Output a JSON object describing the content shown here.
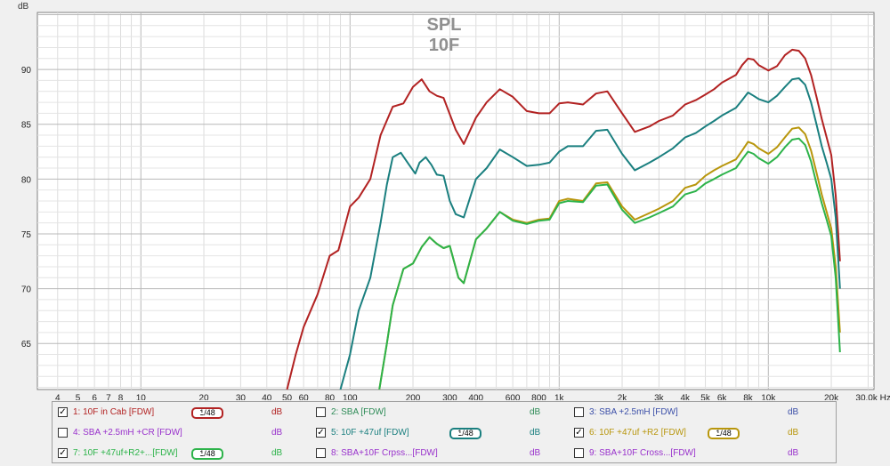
{
  "chart_data": {
    "type": "line",
    "title": "SPL",
    "subtitle": "10F",
    "ylabel": "dB",
    "xunit": "Hz",
    "xscale": "log",
    "xlim": [
      3.2,
      32000
    ],
    "ylim": [
      60.8,
      95.2
    ],
    "grid": true,
    "x_ticks": [
      {
        "value": 4,
        "label": "4"
      },
      {
        "value": 5,
        "label": "5"
      },
      {
        "value": 6,
        "label": "6"
      },
      {
        "value": 7,
        "label": "7"
      },
      {
        "value": 8,
        "label": "8"
      },
      {
        "value": 10,
        "label": "10"
      },
      {
        "value": 20,
        "label": "20"
      },
      {
        "value": 30,
        "label": "30"
      },
      {
        "value": 40,
        "label": "40"
      },
      {
        "value": 50,
        "label": "50"
      },
      {
        "value": 60,
        "label": "60"
      },
      {
        "value": 80,
        "label": "80"
      },
      {
        "value": 100,
        "label": "100"
      },
      {
        "value": 200,
        "label": "200"
      },
      {
        "value": 300,
        "label": "300"
      },
      {
        "value": 400,
        "label": "400"
      },
      {
        "value": 600,
        "label": "600"
      },
      {
        "value": 800,
        "label": "800"
      },
      {
        "value": 1000,
        "label": "1k"
      },
      {
        "value": 2000,
        "label": "2k"
      },
      {
        "value": 3000,
        "label": "3k"
      },
      {
        "value": 4000,
        "label": "4k"
      },
      {
        "value": 5000,
        "label": "5k"
      },
      {
        "value": 6000,
        "label": "6k"
      },
      {
        "value": 8000,
        "label": "8k"
      },
      {
        "value": 10000,
        "label": "10k"
      },
      {
        "value": 20000,
        "label": "20k"
      },
      {
        "value": 30000,
        "label": "30.0k Hz"
      }
    ],
    "y_ticks": [
      65,
      70,
      75,
      80,
      85,
      90
    ],
    "series": [
      {
        "name": "1: 10F in Cab [FDW]",
        "color": "#b22222",
        "points": [
          [
            50,
            60.8
          ],
          [
            55,
            64
          ],
          [
            60,
            66.5
          ],
          [
            70,
            69.5
          ],
          [
            80,
            73
          ],
          [
            88,
            73.5
          ],
          [
            100,
            77.5
          ],
          [
            110,
            78.3
          ],
          [
            125,
            80
          ],
          [
            140,
            84
          ],
          [
            160,
            86.6
          ],
          [
            180,
            86.9
          ],
          [
            200,
            88.4
          ],
          [
            220,
            89.1
          ],
          [
            240,
            88
          ],
          [
            260,
            87.6
          ],
          [
            280,
            87.4
          ],
          [
            320,
            84.5
          ],
          [
            350,
            83.2
          ],
          [
            400,
            85.6
          ],
          [
            450,
            87
          ],
          [
            520,
            88.2
          ],
          [
            600,
            87.5
          ],
          [
            700,
            86.2
          ],
          [
            800,
            86
          ],
          [
            900,
            86
          ],
          [
            1000,
            86.9
          ],
          [
            1100,
            87
          ],
          [
            1300,
            86.8
          ],
          [
            1500,
            87.8
          ],
          [
            1700,
            88
          ],
          [
            2000,
            86
          ],
          [
            2300,
            84.3
          ],
          [
            2700,
            84.8
          ],
          [
            3000,
            85.3
          ],
          [
            3500,
            85.8
          ],
          [
            4000,
            86.8
          ],
          [
            4500,
            87.2
          ],
          [
            5000,
            87.7
          ],
          [
            5500,
            88.2
          ],
          [
            6000,
            88.8
          ],
          [
            7000,
            89.5
          ],
          [
            7500,
            90.4
          ],
          [
            8000,
            91
          ],
          [
            8500,
            90.9
          ],
          [
            9000,
            90.4
          ],
          [
            10000,
            89.9
          ],
          [
            11000,
            90.3
          ],
          [
            12000,
            91.3
          ],
          [
            13000,
            91.8
          ],
          [
            14000,
            91.7
          ],
          [
            15000,
            91
          ],
          [
            16000,
            89.5
          ],
          [
            17000,
            87.5
          ],
          [
            18000,
            85.5
          ],
          [
            19000,
            83.8
          ],
          [
            20000,
            82.2
          ],
          [
            21000,
            78.5
          ],
          [
            22000,
            72.5
          ]
        ]
      },
      {
        "name": "5: 10F +47uf [FDW]",
        "color": "#1a7f7f",
        "points": [
          [
            90,
            60.8
          ],
          [
            100,
            64
          ],
          [
            110,
            68
          ],
          [
            125,
            71
          ],
          [
            140,
            76
          ],
          [
            150,
            79.5
          ],
          [
            160,
            82
          ],
          [
            175,
            82.4
          ],
          [
            190,
            81.4
          ],
          [
            205,
            80.5
          ],
          [
            215,
            81.5
          ],
          [
            230,
            82
          ],
          [
            245,
            81.3
          ],
          [
            260,
            80.4
          ],
          [
            280,
            80.3
          ],
          [
            300,
            78
          ],
          [
            320,
            76.8
          ],
          [
            350,
            76.5
          ],
          [
            400,
            80
          ],
          [
            450,
            81
          ],
          [
            520,
            82.7
          ],
          [
            600,
            82
          ],
          [
            700,
            81.2
          ],
          [
            800,
            81.3
          ],
          [
            900,
            81.5
          ],
          [
            1000,
            82.5
          ],
          [
            1100,
            83
          ],
          [
            1300,
            83
          ],
          [
            1500,
            84.4
          ],
          [
            1700,
            84.5
          ],
          [
            2000,
            82.3
          ],
          [
            2300,
            80.8
          ],
          [
            2700,
            81.5
          ],
          [
            3000,
            82
          ],
          [
            3500,
            82.8
          ],
          [
            4000,
            83.8
          ],
          [
            4500,
            84.2
          ],
          [
            5000,
            84.8
          ],
          [
            5500,
            85.3
          ],
          [
            6000,
            85.8
          ],
          [
            7000,
            86.5
          ],
          [
            7500,
            87.2
          ],
          [
            8000,
            87.9
          ],
          [
            8500,
            87.6
          ],
          [
            9000,
            87.3
          ],
          [
            10000,
            87
          ],
          [
            11000,
            87.6
          ],
          [
            12000,
            88.4
          ],
          [
            13000,
            89.1
          ],
          [
            14000,
            89.2
          ],
          [
            15000,
            88.6
          ],
          [
            16000,
            87
          ],
          [
            17000,
            85
          ],
          [
            18000,
            83
          ],
          [
            19000,
            81.5
          ],
          [
            20000,
            80
          ],
          [
            21000,
            76.5
          ],
          [
            22000,
            70
          ]
        ]
      },
      {
        "name": "6: 10F +47uf +R2 [FDW]",
        "color": "#b8960c",
        "points": [
          [
            138,
            60.8
          ],
          [
            150,
            65
          ],
          [
            160,
            68.5
          ],
          [
            180,
            71.8
          ],
          [
            200,
            72.3
          ],
          [
            220,
            73.8
          ],
          [
            240,
            74.7
          ],
          [
            260,
            74.1
          ],
          [
            280,
            73.7
          ],
          [
            300,
            73.9
          ],
          [
            330,
            71
          ],
          [
            350,
            70.5
          ],
          [
            400,
            74.5
          ],
          [
            450,
            75.5
          ],
          [
            520,
            77
          ],
          [
            600,
            76.3
          ],
          [
            700,
            76
          ],
          [
            800,
            76.3
          ],
          [
            900,
            76.4
          ],
          [
            1000,
            78
          ],
          [
            1100,
            78.2
          ],
          [
            1300,
            78
          ],
          [
            1500,
            79.6
          ],
          [
            1700,
            79.7
          ],
          [
            2000,
            77.5
          ],
          [
            2300,
            76.3
          ],
          [
            2700,
            76.9
          ],
          [
            3000,
            77.3
          ],
          [
            3500,
            78
          ],
          [
            4000,
            79.2
          ],
          [
            4500,
            79.5
          ],
          [
            5000,
            80.3
          ],
          [
            5500,
            80.8
          ],
          [
            6000,
            81.2
          ],
          [
            7000,
            81.8
          ],
          [
            7500,
            82.6
          ],
          [
            8000,
            83.4
          ],
          [
            8500,
            83.2
          ],
          [
            9000,
            82.8
          ],
          [
            10000,
            82.3
          ],
          [
            11000,
            82.9
          ],
          [
            12000,
            83.8
          ],
          [
            13000,
            84.6
          ],
          [
            14000,
            84.7
          ],
          [
            15000,
            84.1
          ],
          [
            16000,
            82.6
          ],
          [
            17000,
            80.6
          ],
          [
            18000,
            78.6
          ],
          [
            19000,
            77
          ],
          [
            20000,
            75.5
          ],
          [
            21000,
            72
          ],
          [
            22000,
            66
          ]
        ]
      },
      {
        "name": "7: 10F +47uf+R2+...[FDW]",
        "color": "#2db34a",
        "points": [
          [
            138,
            60.8
          ],
          [
            150,
            65
          ],
          [
            160,
            68.5
          ],
          [
            180,
            71.8
          ],
          [
            200,
            72.3
          ],
          [
            220,
            73.8
          ],
          [
            240,
            74.7
          ],
          [
            260,
            74.1
          ],
          [
            280,
            73.7
          ],
          [
            300,
            73.9
          ],
          [
            330,
            71
          ],
          [
            350,
            70.5
          ],
          [
            400,
            74.5
          ],
          [
            450,
            75.5
          ],
          [
            520,
            77
          ],
          [
            600,
            76.2
          ],
          [
            700,
            75.9
          ],
          [
            800,
            76.2
          ],
          [
            900,
            76.3
          ],
          [
            1000,
            77.8
          ],
          [
            1100,
            78
          ],
          [
            1300,
            77.9
          ],
          [
            1500,
            79.4
          ],
          [
            1700,
            79.5
          ],
          [
            2000,
            77.2
          ],
          [
            2300,
            76
          ],
          [
            2700,
            76.5
          ],
          [
            3000,
            76.9
          ],
          [
            3500,
            77.5
          ],
          [
            4000,
            78.6
          ],
          [
            4500,
            78.9
          ],
          [
            5000,
            79.6
          ],
          [
            5500,
            80
          ],
          [
            6000,
            80.4
          ],
          [
            7000,
            81
          ],
          [
            7500,
            81.8
          ],
          [
            8000,
            82.5
          ],
          [
            8500,
            82.3
          ],
          [
            9000,
            81.9
          ],
          [
            10000,
            81.4
          ],
          [
            11000,
            82
          ],
          [
            12000,
            82.9
          ],
          [
            13000,
            83.6
          ],
          [
            14000,
            83.7
          ],
          [
            15000,
            83.1
          ],
          [
            16000,
            81.6
          ],
          [
            17000,
            79.6
          ],
          [
            18000,
            77.8
          ],
          [
            19000,
            76.3
          ],
          [
            20000,
            74.8
          ],
          [
            21000,
            71
          ],
          [
            22000,
            64.2
          ]
        ]
      }
    ]
  },
  "legend": {
    "items": [
      {
        "label": "1: 10F in Cab [FDW]",
        "checked": true,
        "color": "#b22222",
        "badge": "1/48",
        "unit": "dB",
        "unit_color": "#b22222"
      },
      {
        "label": "2: SBA [FDW]",
        "checked": false,
        "color": "#2e8b57",
        "badge": "",
        "unit": "dB",
        "unit_color": "#2e8b57"
      },
      {
        "label": "3: SBA +2.5mH [FDW]",
        "checked": false,
        "color": "#3b4fa8",
        "badge": "",
        "unit": "dB",
        "unit_color": "#3b4fa8"
      },
      {
        "label": "4: SBA +2.5mH +CR [FDW]",
        "checked": false,
        "color": "#9932cc",
        "badge": "",
        "unit": "dB",
        "unit_color": "#9932cc"
      },
      {
        "label": "5: 10F +47uf [FDW]",
        "checked": true,
        "color": "#1a7f7f",
        "badge": "1/48",
        "unit": "dB",
        "unit_color": "#1a7f7f"
      },
      {
        "label": "6: 10F +47uf +R2 [FDW]",
        "checked": true,
        "color": "#b8960c",
        "badge": "1/48",
        "unit": "dB",
        "unit_color": "#b8960c"
      },
      {
        "label": "7: 10F +47uf+R2+...[FDW]",
        "checked": true,
        "color": "#2db34a",
        "badge": "1/48",
        "unit": "dB",
        "unit_color": "#2db34a"
      },
      {
        "label": "8: SBA+10F Crpss...[FDW]",
        "checked": false,
        "color": "#9932cc",
        "badge": "",
        "unit": "dB",
        "unit_color": "#9932cc"
      },
      {
        "label": "9: SBA+10F Cross...[FDW]",
        "checked": false,
        "color": "#9932cc",
        "badge": "",
        "unit": "dB",
        "unit_color": "#9932cc"
      }
    ]
  }
}
